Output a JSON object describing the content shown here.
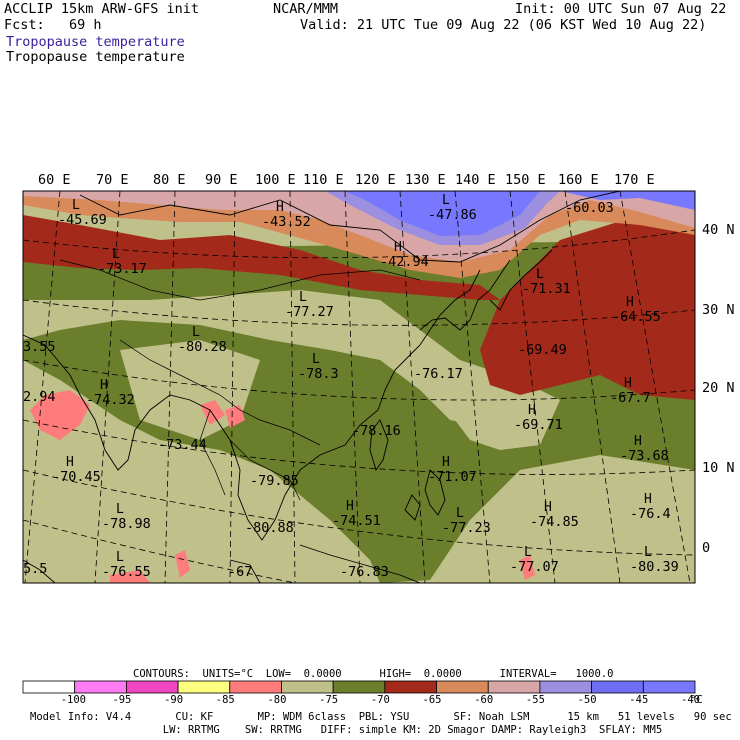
{
  "header": {
    "line1_left": "ACCLIP 15km ARW-GFS init",
    "line1_mid": "NCAR/MMM",
    "line1_right": "Init: 00 UTC Sun 07 Aug 22",
    "line2_left": "Fcst:   69 h",
    "line2_right": "Valid: 21 UTC Tue 09 Aug 22 (06 KST Wed 10 Aug 22)",
    "title_colored": "Tropopause temperature",
    "title_plain": "Tropopause temperature"
  },
  "lon_labels": [
    "60 E",
    "70 E",
    "80 E",
    "90 E",
    "100 E",
    "110 E",
    "120 E",
    "130 E",
    "140 E",
    "150 E",
    "160 E",
    "170 E"
  ],
  "lat_labels": [
    "40 N",
    "30 N",
    "20 N",
    "10 N",
    "0"
  ],
  "extremes": [
    {
      "mark": "L",
      "value": "-45.69"
    },
    {
      "mark": "H",
      "value": "-43.52"
    },
    {
      "mark": "L",
      "value": "-47.86"
    },
    {
      "mark": "",
      "value": "-60.03"
    },
    {
      "mark": "H",
      "value": "-42.94"
    },
    {
      "mark": "L",
      "value": "-73.17"
    },
    {
      "mark": "L",
      "value": "-77.27"
    },
    {
      "mark": "L",
      "value": "-71.31"
    },
    {
      "mark": "H",
      "value": "-64.55"
    },
    {
      "mark": "",
      "value": "3.55"
    },
    {
      "mark": "L",
      "value": "-80.28"
    },
    {
      "mark": "",
      "value": "-69.49"
    },
    {
      "mark": "L",
      "value": "-78.3"
    },
    {
      "mark": "",
      "value": "-76.17"
    },
    {
      "mark": "H",
      "value": "-74.32"
    },
    {
      "mark": "",
      "value": "2.94"
    },
    {
      "mark": "H",
      "value": "-67.7"
    },
    {
      "mark": "",
      "value": "-78.16"
    },
    {
      "mark": "H",
      "value": "-69.71"
    },
    {
      "mark": "",
      "value": "-73.44"
    },
    {
      "mark": "H",
      "value": "-73.68"
    },
    {
      "mark": "H",
      "value": "-70.45"
    },
    {
      "mark": "",
      "value": "-79.85"
    },
    {
      "mark": "H",
      "value": "-71.07"
    },
    {
      "mark": "L",
      "value": "-78.98"
    },
    {
      "mark": "",
      "value": "-80.88"
    },
    {
      "mark": "H",
      "value": "-74.51"
    },
    {
      "mark": "L",
      "value": "-77.23"
    },
    {
      "mark": "H",
      "value": "-74.85"
    },
    {
      "mark": "H",
      "value": "-76.4"
    },
    {
      "mark": "",
      "value": "5.5"
    },
    {
      "mark": "L",
      "value": "-76.55"
    },
    {
      "mark": "",
      "value": "-67"
    },
    {
      "mark": "",
      "value": "-76.83"
    },
    {
      "mark": "L",
      "value": "-77.07"
    },
    {
      "mark": "L",
      "value": "-80.39"
    }
  ],
  "contours_line": "CONTOURS:  UNITS=°C  LOW=  0.0000      HIGH=  0.0000      INTERVAL=   1000.0",
  "colorbar": {
    "colors": [
      "#ffffff",
      "#ff7cf4",
      "#f046c4",
      "#ffff80",
      "#ff7c7c",
      "#c0c08a",
      "#6b7e2c",
      "#a32a1a",
      "#d98a5a",
      "#d8a6a6",
      "#9c8fe0",
      "#6e6ef4",
      "#7878ff"
    ],
    "ticks": [
      "-100",
      "-95",
      "-90",
      "-85",
      "-80",
      "-75",
      "-70",
      "-65",
      "-60",
      "-55",
      "-50",
      "-45",
      "-40"
    ],
    "unit": "°C"
  },
  "footer": {
    "line1": "Model Info: V4.4       CU: KF       MP: WDM 6class  PBL: YSU       SF: Noah LSM      15 km   51 levels   90 sec",
    "line2": "                     LW: RRTMG    SW: RRTMG   DIFF: simple KM: 2D Smagor DAMP: Rayleigh3  SFLAY: MM5"
  },
  "colors": {
    "blue_zone": "#7878ff",
    "pink_zone": "#d8a6a6",
    "orange_zone": "#d98a5a",
    "red_zone": "#a32a1a",
    "olive_dark": "#6b7e2c",
    "olive_light": "#c0c08a",
    "salmon": "#ff7c7c"
  }
}
